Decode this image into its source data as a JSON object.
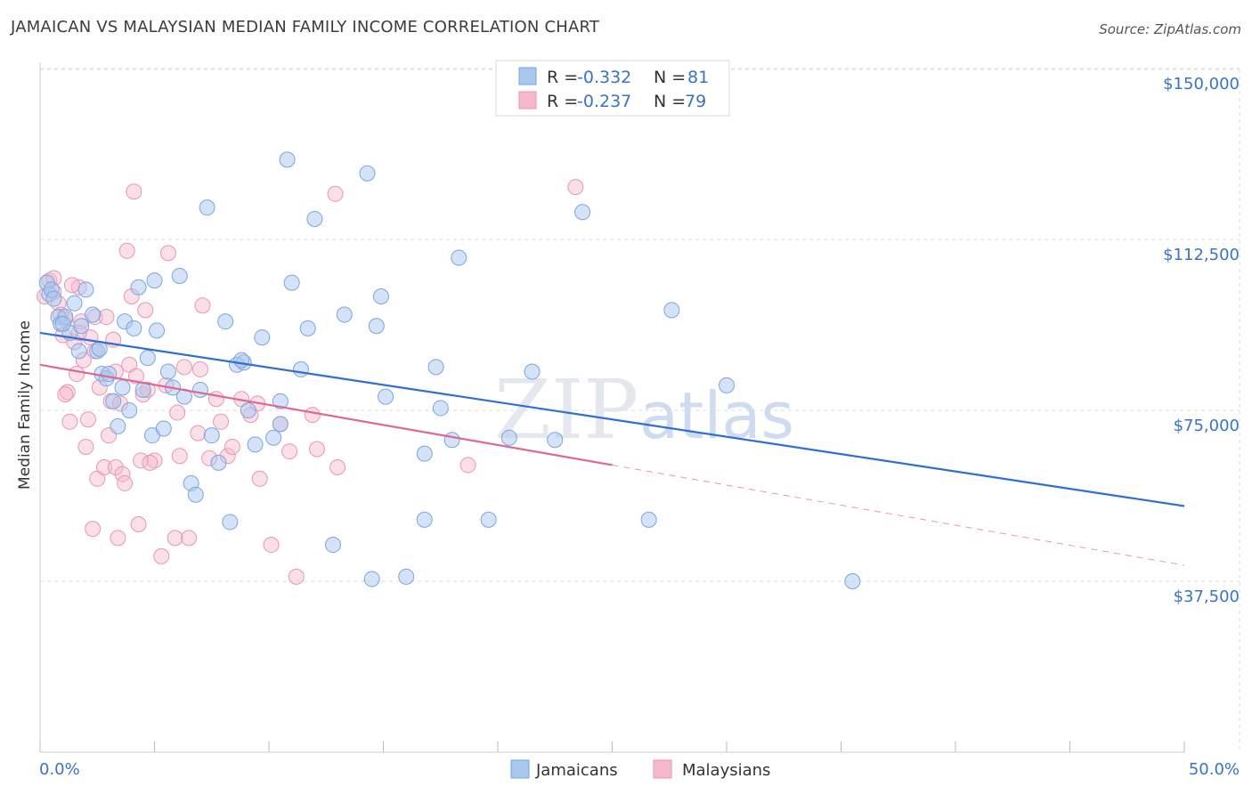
{
  "title": "JAMAICAN VS MALAYSIAN MEDIAN FAMILY INCOME CORRELATION CHART",
  "source": "Source: ZipAtlas.com",
  "watermark": {
    "zip": "ZIP",
    "atlas": "atlas"
  },
  "colors": {
    "blue_fill": "#a9c8f0",
    "blue_stroke": "#7aa6de",
    "blue_line": "#2f6fd0",
    "pink_fill": "#f5b8cc",
    "pink_stroke": "#e996b2",
    "pink_line": "#e06694",
    "tick_label": "#3a73c4",
    "grid": "#dddddd"
  },
  "legend": {
    "rows": [
      {
        "r_label": "R = ",
        "r_value": "-0.332",
        "n_label": "N = ",
        "n_value": "81",
        "series": "blue"
      },
      {
        "r_label": "R = ",
        "r_value": "-0.237",
        "n_label": "N = ",
        "n_value": "79",
        "series": "pink"
      }
    ]
  },
  "bottom_legend": [
    "Jamaicans",
    "Malaysians"
  ],
  "chart_data": {
    "type": "scatter",
    "title": "JAMAICAN VS MALAYSIAN MEDIAN FAMILY INCOME CORRELATION CHART",
    "xlabel": "",
    "ylabel": "Median Family Income",
    "xlim": [
      0,
      50
    ],
    "ylim": [
      0,
      152000
    ],
    "x_tick_labels": [
      "0.0%",
      "50.0%"
    ],
    "y_ticks": [
      37500,
      75000,
      112500,
      150000
    ],
    "y_tick_labels": [
      "$37,500",
      "$75,000",
      "$112,500",
      "$150,000"
    ],
    "grid": true,
    "legend_position": "top-center",
    "series": [
      {
        "name": "Jamaicans",
        "color": "#a9c8f0",
        "trend": {
          "x": [
            0,
            50
          ],
          "y": [
            92000,
            54000
          ]
        },
        "points": [
          [
            0.3,
            103000
          ],
          [
            0.4,
            100500
          ],
          [
            0.5,
            101500
          ],
          [
            0.6,
            99500
          ],
          [
            0.8,
            95500
          ],
          [
            0.9,
            94000
          ],
          [
            1.1,
            95500
          ],
          [
            1.3,
            92000
          ],
          [
            1.5,
            98500
          ],
          [
            1.7,
            88000
          ],
          [
            1.8,
            93500
          ],
          [
            2.0,
            101500
          ],
          [
            2.3,
            96000
          ],
          [
            2.5,
            88000
          ],
          [
            2.7,
            83000
          ],
          [
            2.9,
            82000
          ],
          [
            3.2,
            77000
          ],
          [
            3.4,
            71500
          ],
          [
            3.6,
            80000
          ],
          [
            3.7,
            94500
          ],
          [
            3.9,
            75000
          ],
          [
            4.1,
            93000
          ],
          [
            4.3,
            102000
          ],
          [
            4.5,
            79500
          ],
          [
            4.7,
            86500
          ],
          [
            4.9,
            69500
          ],
          [
            5.1,
            92500
          ],
          [
            5.4,
            71000
          ],
          [
            5.6,
            83500
          ],
          [
            5.8,
            80000
          ],
          [
            6.1,
            104500
          ],
          [
            6.3,
            78000
          ],
          [
            6.6,
            59000
          ],
          [
            6.8,
            56500
          ],
          [
            7.0,
            79500
          ],
          [
            7.3,
            119500
          ],
          [
            7.5,
            69500
          ],
          [
            7.8,
            63500
          ],
          [
            8.1,
            94500
          ],
          [
            8.3,
            50500
          ],
          [
            8.6,
            85000
          ],
          [
            8.9,
            85500
          ],
          [
            9.1,
            75000
          ],
          [
            9.4,
            67500
          ],
          [
            9.7,
            91000
          ],
          [
            10.2,
            69000
          ],
          [
            10.5,
            72000
          ],
          [
            10.8,
            130000
          ],
          [
            11.0,
            103000
          ],
          [
            11.4,
            84000
          ],
          [
            11.7,
            93000
          ],
          [
            12.0,
            117000
          ],
          [
            12.8,
            45500
          ],
          [
            13.3,
            96000
          ],
          [
            14.3,
            127000
          ],
          [
            14.7,
            93500
          ],
          [
            14.9,
            100000
          ],
          [
            16.0,
            38500
          ],
          [
            16.8,
            65500
          ],
          [
            17.3,
            84500
          ],
          [
            17.5,
            75500
          ],
          [
            18.0,
            68500
          ],
          [
            18.3,
            108500
          ],
          [
            19.6,
            51000
          ],
          [
            20.5,
            69000
          ],
          [
            21.5,
            83500
          ],
          [
            22.5,
            68500
          ],
          [
            23.7,
            118500
          ],
          [
            26.6,
            51000
          ],
          [
            27.6,
            97000
          ],
          [
            30.0,
            80500
          ],
          [
            35.5,
            37500
          ],
          [
            16.8,
            51000
          ],
          [
            15.1,
            78000
          ],
          [
            5.0,
            103500
          ],
          [
            2.6,
            88500
          ],
          [
            8.8,
            86000
          ],
          [
            10.5,
            77000
          ],
          [
            1.0,
            94000
          ],
          [
            3.0,
            83000
          ],
          [
            14.5,
            38000
          ]
        ]
      },
      {
        "name": "Malaysians",
        "color": "#f5b8cc",
        "trend": {
          "x": [
            0,
            25
          ],
          "y": [
            85000,
            63000
          ]
        },
        "trend_dashed": {
          "x": [
            25,
            50
          ],
          "y": [
            63000,
            41000
          ]
        },
        "points": [
          [
            0.2,
            100000
          ],
          [
            0.4,
            103500
          ],
          [
            0.6,
            101000
          ],
          [
            0.8,
            98500
          ],
          [
            1.0,
            91500
          ],
          [
            1.1,
            95000
          ],
          [
            1.2,
            79000
          ],
          [
            1.3,
            72500
          ],
          [
            1.5,
            90000
          ],
          [
            1.6,
            83000
          ],
          [
            1.7,
            102000
          ],
          [
            1.8,
            94500
          ],
          [
            1.9,
            86000
          ],
          [
            2.0,
            67000
          ],
          [
            2.1,
            73000
          ],
          [
            2.2,
            91000
          ],
          [
            2.3,
            49000
          ],
          [
            2.4,
            95500
          ],
          [
            2.5,
            60000
          ],
          [
            2.6,
            80000
          ],
          [
            2.8,
            62500
          ],
          [
            3.0,
            69500
          ],
          [
            3.1,
            77000
          ],
          [
            3.2,
            90500
          ],
          [
            3.3,
            62500
          ],
          [
            3.4,
            47000
          ],
          [
            3.5,
            76500
          ],
          [
            3.6,
            61000
          ],
          [
            3.7,
            59000
          ],
          [
            3.8,
            110000
          ],
          [
            3.9,
            85000
          ],
          [
            4.0,
            100000
          ],
          [
            4.1,
            123000
          ],
          [
            4.2,
            82500
          ],
          [
            4.3,
            50000
          ],
          [
            4.4,
            64000
          ],
          [
            4.5,
            78500
          ],
          [
            4.6,
            97000
          ],
          [
            4.7,
            79500
          ],
          [
            5.0,
            64000
          ],
          [
            5.3,
            43000
          ],
          [
            5.6,
            109500
          ],
          [
            5.9,
            47000
          ],
          [
            6.0,
            74500
          ],
          [
            6.1,
            65000
          ],
          [
            6.3,
            84500
          ],
          [
            6.5,
            47000
          ],
          [
            6.9,
            70000
          ],
          [
            7.1,
            98000
          ],
          [
            7.4,
            64500
          ],
          [
            7.7,
            77500
          ],
          [
            7.9,
            72500
          ],
          [
            8.2,
            65000
          ],
          [
            8.4,
            67000
          ],
          [
            8.8,
            77500
          ],
          [
            9.2,
            74000
          ],
          [
            9.6,
            60000
          ],
          [
            10.1,
            45500
          ],
          [
            10.5,
            72000
          ],
          [
            10.9,
            66000
          ],
          [
            11.2,
            38500
          ],
          [
            11.9,
            74000
          ],
          [
            12.1,
            66500
          ],
          [
            12.9,
            122500
          ],
          [
            13.0,
            62500
          ],
          [
            18.7,
            63000
          ],
          [
            23.4,
            124000
          ],
          [
            1.4,
            102500
          ],
          [
            0.6,
            104000
          ],
          [
            2.9,
            95500
          ],
          [
            1.1,
            78500
          ],
          [
            3.3,
            83500
          ],
          [
            7.0,
            84000
          ],
          [
            9.5,
            76500
          ],
          [
            4.8,
            63500
          ],
          [
            2.4,
            88000
          ],
          [
            1.7,
            92000
          ],
          [
            0.9,
            96000
          ],
          [
            5.5,
            80500
          ]
        ]
      }
    ]
  }
}
